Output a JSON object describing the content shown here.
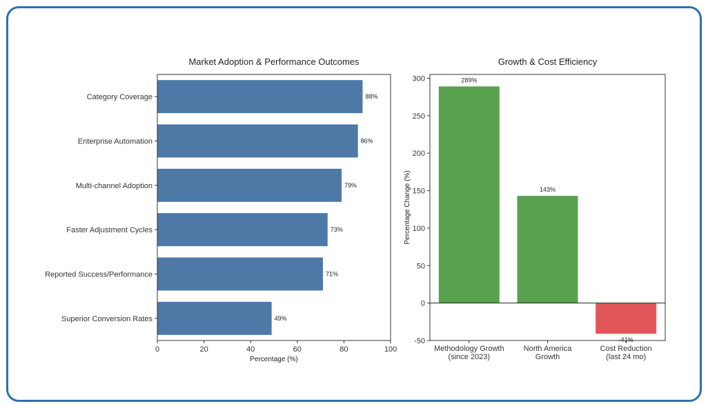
{
  "chart_data": [
    {
      "type": "bar",
      "orientation": "horizontal",
      "title": "Market Adoption & Performance Outcomes",
      "xlabel": "Percentage (%)",
      "ylabel": "",
      "xlim": [
        0,
        100
      ],
      "xticks": [
        0,
        20,
        40,
        60,
        80,
        100
      ],
      "categories": [
        "Category Coverage",
        "Enterprise Automation",
        "Multi-channel Adoption",
        "Faster Adjustment Cycles",
        "Reported Success/Performance",
        "Superior Conversion Rates"
      ],
      "values": [
        88,
        86,
        79,
        73,
        71,
        49
      ],
      "labels": [
        "88%",
        "86%",
        "79%",
        "73%",
        "71%",
        "49%"
      ],
      "bar_color": "#4e79a7"
    },
    {
      "type": "bar",
      "orientation": "vertical",
      "title": "Growth & Cost Efficiency",
      "xlabel": "",
      "ylabel": "Percentage Change (%)",
      "ylim": [
        -50,
        305
      ],
      "yticks": [
        -50,
        0,
        50,
        100,
        150,
        200,
        250,
        300
      ],
      "categories": [
        [
          "Methodology Growth",
          "(since 2023)"
        ],
        [
          "North America",
          "Growth"
        ],
        [
          "Cost Reduction",
          "(last 24 mo)"
        ]
      ],
      "values": [
        289,
        143,
        -41
      ],
      "labels": [
        "289%",
        "143%",
        "-41%"
      ],
      "positive_color": "#59a14f",
      "negative_color": "#e15759"
    }
  ]
}
